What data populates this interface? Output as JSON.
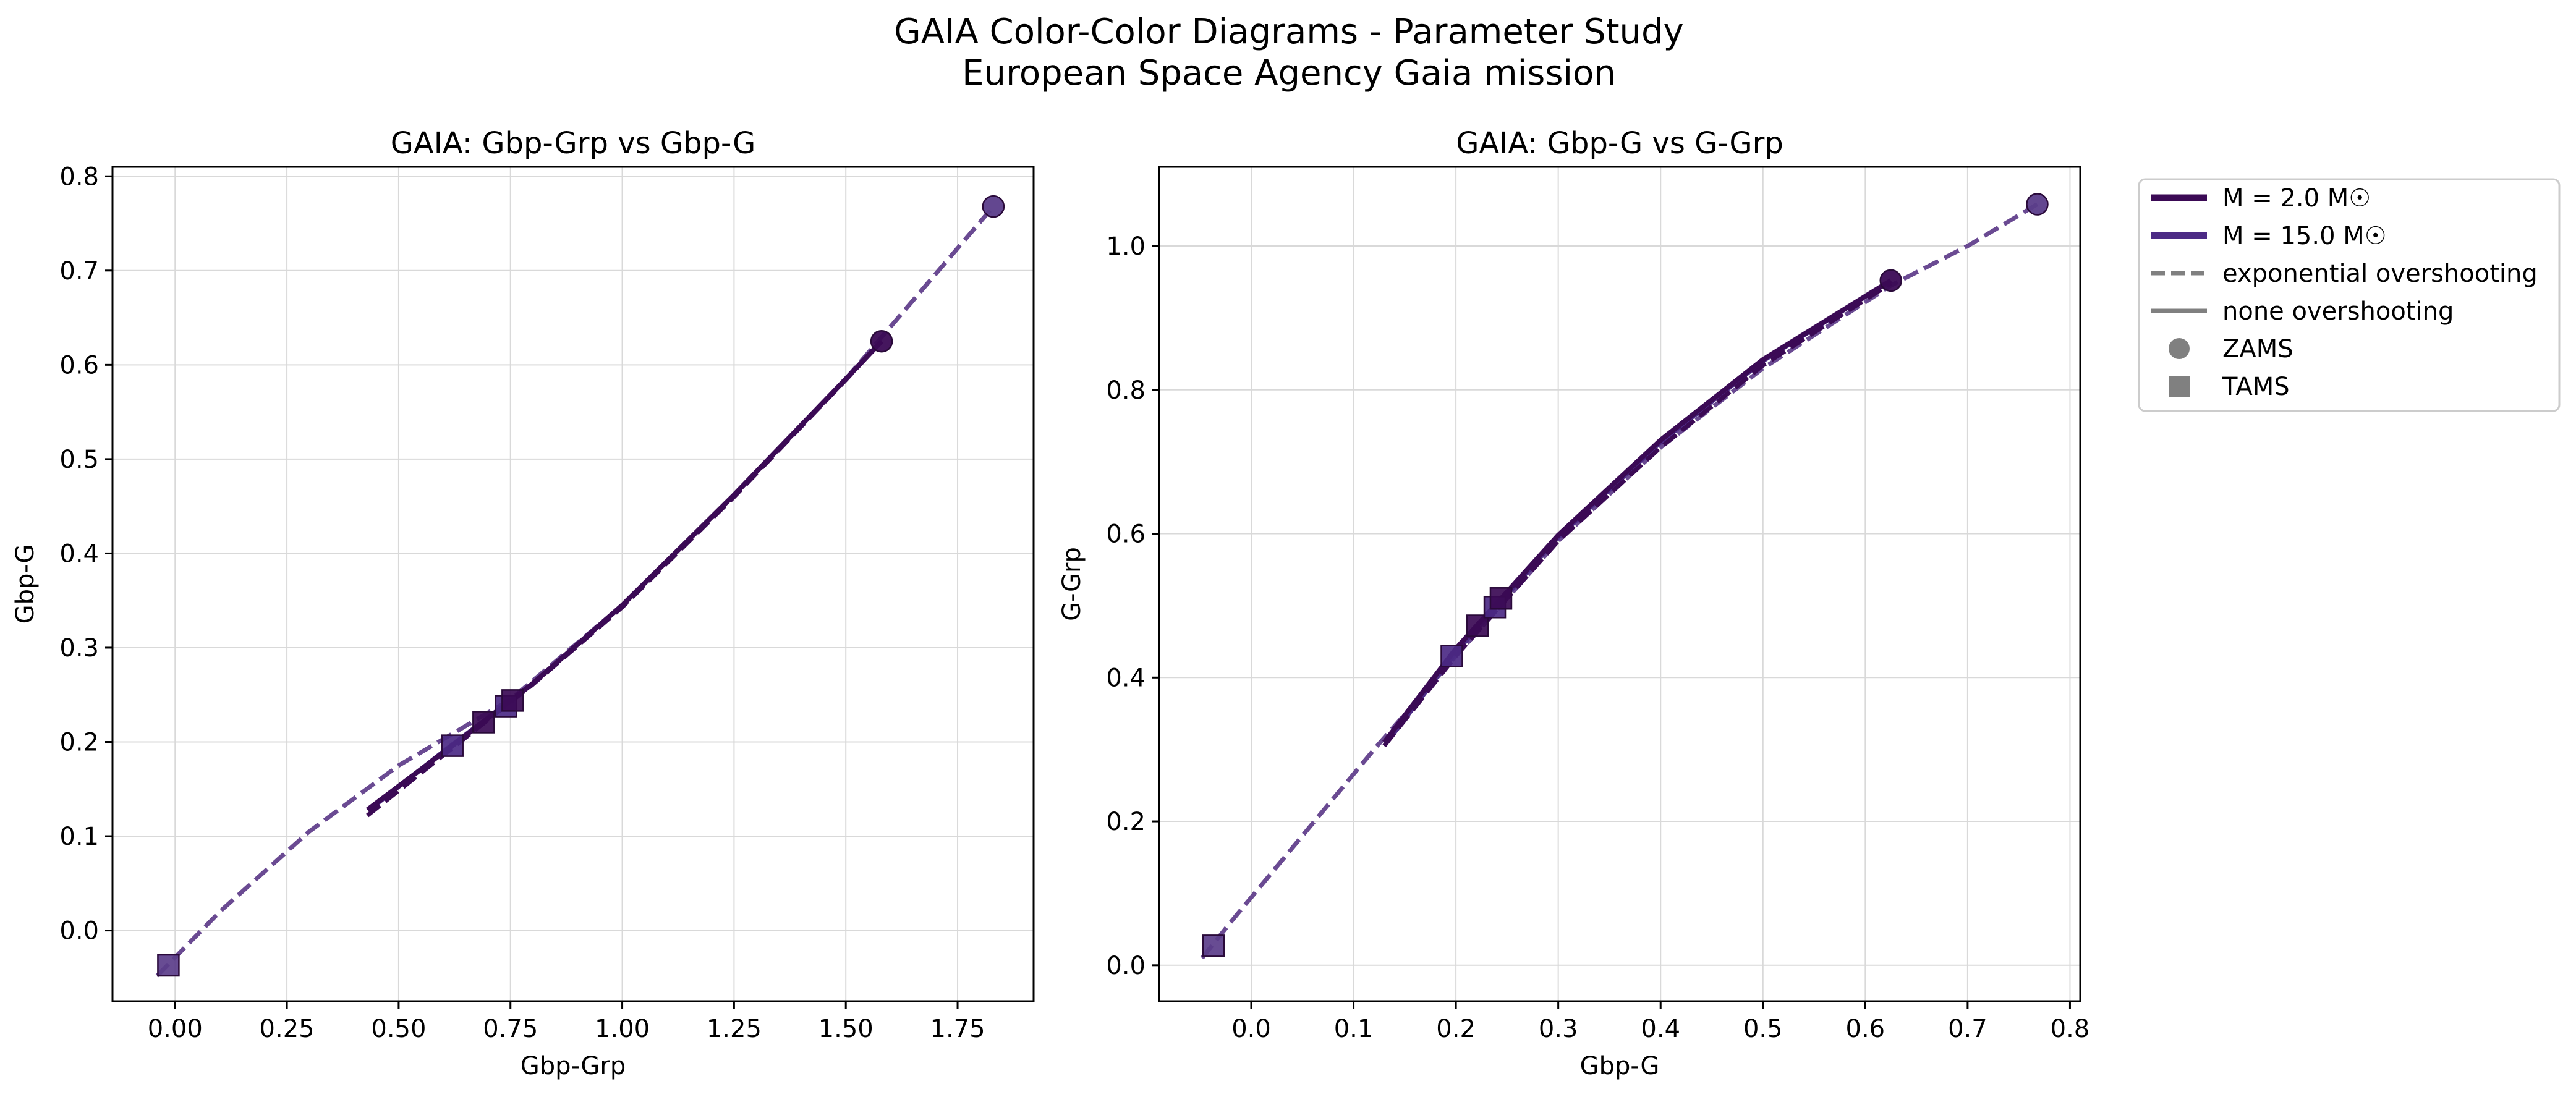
{
  "figure": {
    "title_line1": "GAIA Color-Color Diagrams - Parameter Study",
    "title_line2": "European Space Agency Gaia mission"
  },
  "colors": {
    "m2": "#3b0a55",
    "m15": "#4c2a85",
    "m15_dashed": "#6a4a92",
    "legend_gray": "#808080",
    "grid": "#d9d9d9"
  },
  "legend": {
    "placement": "upper-right-outside",
    "entries": [
      {
        "label": "M = 2.0 M☉",
        "style": "line-solid-thick",
        "color": "#3b0a55"
      },
      {
        "label": "M = 15.0 M☉",
        "style": "line-solid-thick",
        "color": "#4c2a85"
      },
      {
        "label": "exponential overshooting",
        "style": "line-dashed",
        "color": "#808080"
      },
      {
        "label": "none overshooting",
        "style": "line-solid",
        "color": "#808080"
      },
      {
        "label": "ZAMS",
        "style": "marker-circle",
        "color": "#808080"
      },
      {
        "label": "TAMS",
        "style": "marker-square",
        "color": "#808080"
      }
    ]
  },
  "chart_data": [
    {
      "type": "line",
      "title": "GAIA: Gbp-Grp vs Gbp-G",
      "xlabel": "Gbp-Grp",
      "ylabel": "Gbp-G",
      "xlim": [
        -0.14,
        1.92
      ],
      "ylim": [
        -0.075,
        0.81
      ],
      "xticks": [
        0.0,
        0.25,
        0.5,
        0.75,
        1.0,
        1.25,
        1.5,
        1.75
      ],
      "xtick_labels": [
        "0.00",
        "0.25",
        "0.50",
        "0.75",
        "1.00",
        "1.25",
        "1.50",
        "1.75"
      ],
      "yticks": [
        0.0,
        0.1,
        0.2,
        0.3,
        0.4,
        0.5,
        0.6,
        0.7,
        0.8
      ],
      "ytick_labels": [
        "0.0",
        "0.1",
        "0.2",
        "0.3",
        "0.4",
        "0.5",
        "0.6",
        "0.7",
        "0.8"
      ],
      "grid": true,
      "series": [
        {
          "mass": "15.0",
          "overshooting": "exponential",
          "dash": true,
          "color": "#6a4a92",
          "width": 7,
          "x": [
            -0.04,
            0.1,
            0.3,
            0.5,
            0.75,
            1.0,
            1.25,
            1.5,
            1.83
          ],
          "y": [
            -0.048,
            0.02,
            0.105,
            0.175,
            0.245,
            0.345,
            0.462,
            0.585,
            0.768
          ]
        },
        {
          "mass": "15.0",
          "overshooting": "none",
          "dash": false,
          "color": "#4c2a85",
          "width": 7,
          "x": [
            0.44,
            0.6,
            0.8,
            1.0,
            1.25,
            1.5,
            1.58
          ],
          "y": [
            0.13,
            0.19,
            0.262,
            0.345,
            0.462,
            0.585,
            0.625
          ]
        },
        {
          "mass": "2.0",
          "overshooting": "exponential",
          "dash": true,
          "color": "#3b0a55",
          "width": 7,
          "x": [
            0.43,
            0.6,
            0.8,
            1.0,
            1.25,
            1.5,
            1.58
          ],
          "y": [
            0.122,
            0.186,
            0.261,
            0.343,
            0.46,
            0.584,
            0.625
          ]
        },
        {
          "mass": "2.0",
          "overshooting": "none",
          "dash": false,
          "color": "#3b0a55",
          "width": 8,
          "x": [
            0.43,
            0.62,
            0.8,
            1.0,
            1.25,
            1.5,
            1.58
          ],
          "y": [
            0.128,
            0.196,
            0.262,
            0.345,
            0.462,
            0.585,
            0.625
          ]
        }
      ],
      "zams": [
        {
          "x": 1.58,
          "y": 0.625,
          "color": "#3b0a55"
        },
        {
          "x": 1.83,
          "y": 0.768,
          "color": "#5b3d8a"
        }
      ],
      "tams": [
        {
          "x": -0.015,
          "y": -0.037,
          "color": "#5b3d8a"
        },
        {
          "x": 0.62,
          "y": 0.196,
          "color": "#4c2a85"
        },
        {
          "x": 0.69,
          "y": 0.221,
          "color": "#3b0a55"
        },
        {
          "x": 0.74,
          "y": 0.238,
          "color": "#4c2a85"
        },
        {
          "x": 0.755,
          "y": 0.244,
          "color": "#3b0a55"
        }
      ]
    },
    {
      "type": "line",
      "title": "GAIA: Gbp-G vs G-Grp",
      "xlabel": "Gbp-G",
      "ylabel": "G-Grp",
      "xlim": [
        -0.09,
        0.81
      ],
      "ylim": [
        -0.05,
        1.11
      ],
      "xticks": [
        0.0,
        0.1,
        0.2,
        0.3,
        0.4,
        0.5,
        0.6,
        0.7,
        0.8
      ],
      "xtick_labels": [
        "0.0",
        "0.1",
        "0.2",
        "0.3",
        "0.4",
        "0.5",
        "0.6",
        "0.7",
        "0.8"
      ],
      "yticks": [
        0.0,
        0.2,
        0.4,
        0.6,
        0.8,
        1.0
      ],
      "ytick_labels": [
        "0.0",
        "0.2",
        "0.4",
        "0.6",
        "0.8",
        "1.0"
      ],
      "grid": true,
      "series": [
        {
          "mass": "15.0",
          "overshooting": "exponential",
          "dash": true,
          "color": "#6a4a92",
          "width": 7,
          "x": [
            -0.048,
            -0.02,
            0.05,
            0.12,
            0.2,
            0.3,
            0.4,
            0.5,
            0.625,
            0.7,
            0.768
          ],
          "y": [
            0.01,
            0.06,
            0.18,
            0.3,
            0.43,
            0.59,
            0.72,
            0.83,
            0.945,
            1.0,
            1.058
          ]
        },
        {
          "mass": "15.0",
          "overshooting": "none",
          "dash": false,
          "color": "#4c2a85",
          "width": 7,
          "x": [
            0.13,
            0.2,
            0.3,
            0.4,
            0.5,
            0.625
          ],
          "y": [
            0.305,
            0.435,
            0.595,
            0.727,
            0.84,
            0.952
          ]
        },
        {
          "mass": "2.0",
          "overshooting": "exponential",
          "dash": true,
          "color": "#3b0a55",
          "width": 7,
          "x": [
            0.13,
            0.2,
            0.3,
            0.4,
            0.5,
            0.625
          ],
          "y": [
            0.305,
            0.43,
            0.59,
            0.72,
            0.834,
            0.948
          ]
        },
        {
          "mass": "2.0",
          "overshooting": "none",
          "dash": false,
          "color": "#3b0a55",
          "width": 8,
          "x": [
            0.13,
            0.2,
            0.3,
            0.4,
            0.5,
            0.625
          ],
          "y": [
            0.31,
            0.44,
            0.598,
            0.73,
            0.842,
            0.952
          ]
        }
      ],
      "zams": [
        {
          "x": 0.625,
          "y": 0.952,
          "color": "#3b0a55"
        },
        {
          "x": 0.768,
          "y": 1.058,
          "color": "#5b3d8a"
        }
      ],
      "tams": [
        {
          "x": -0.037,
          "y": 0.027,
          "color": "#5b3d8a"
        },
        {
          "x": 0.196,
          "y": 0.43,
          "color": "#4c2a85"
        },
        {
          "x": 0.221,
          "y": 0.472,
          "color": "#3b0a55"
        },
        {
          "x": 0.238,
          "y": 0.498,
          "color": "#4c2a85"
        },
        {
          "x": 0.244,
          "y": 0.51,
          "color": "#3b0a55"
        }
      ]
    }
  ]
}
